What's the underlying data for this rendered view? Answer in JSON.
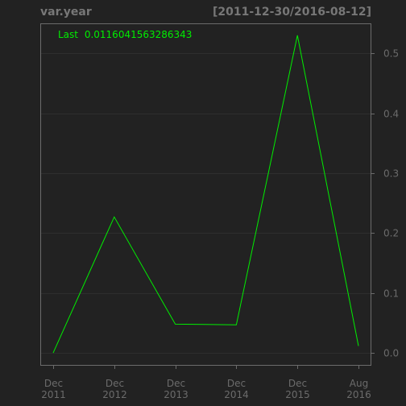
{
  "chart_data": {
    "type": "line",
    "title": "var.year",
    "date_range": "[2011-12-30/2016-08-12]",
    "legend_label": "Last",
    "last_value": "0.0116041563286343",
    "x": [
      "2011-12-30",
      "2012-12-31",
      "2013-12-31",
      "2014-12-31",
      "2015-12-31",
      "2016-08-12"
    ],
    "series": [
      {
        "values": [
          0.0,
          0.227,
          0.048,
          0.047,
          0.53,
          0.0116041563286343
        ],
        "color": "#00ee00"
      }
    ],
    "x_ticks": [
      {
        "line1": "Dec",
        "line2": "2011"
      },
      {
        "line1": "Dec",
        "line2": "2012"
      },
      {
        "line1": "Dec",
        "line2": "2013"
      },
      {
        "line1": "Dec",
        "line2": "2014"
      },
      {
        "line1": "Dec",
        "line2": "2015"
      },
      {
        "line1": "Aug",
        "line2": "2016"
      }
    ],
    "y_ticks": [
      "0.0",
      "0.1",
      "0.2",
      "0.3",
      "0.4",
      "0.5"
    ],
    "ylim": [
      -0.02,
      0.55
    ],
    "y_axis_position": "right",
    "grid": true,
    "legend_position": "top-left",
    "colors": {
      "background": "#222222",
      "frame": "#6b6b6b",
      "grid": "#2e2e2e",
      "text": "#777777"
    }
  }
}
